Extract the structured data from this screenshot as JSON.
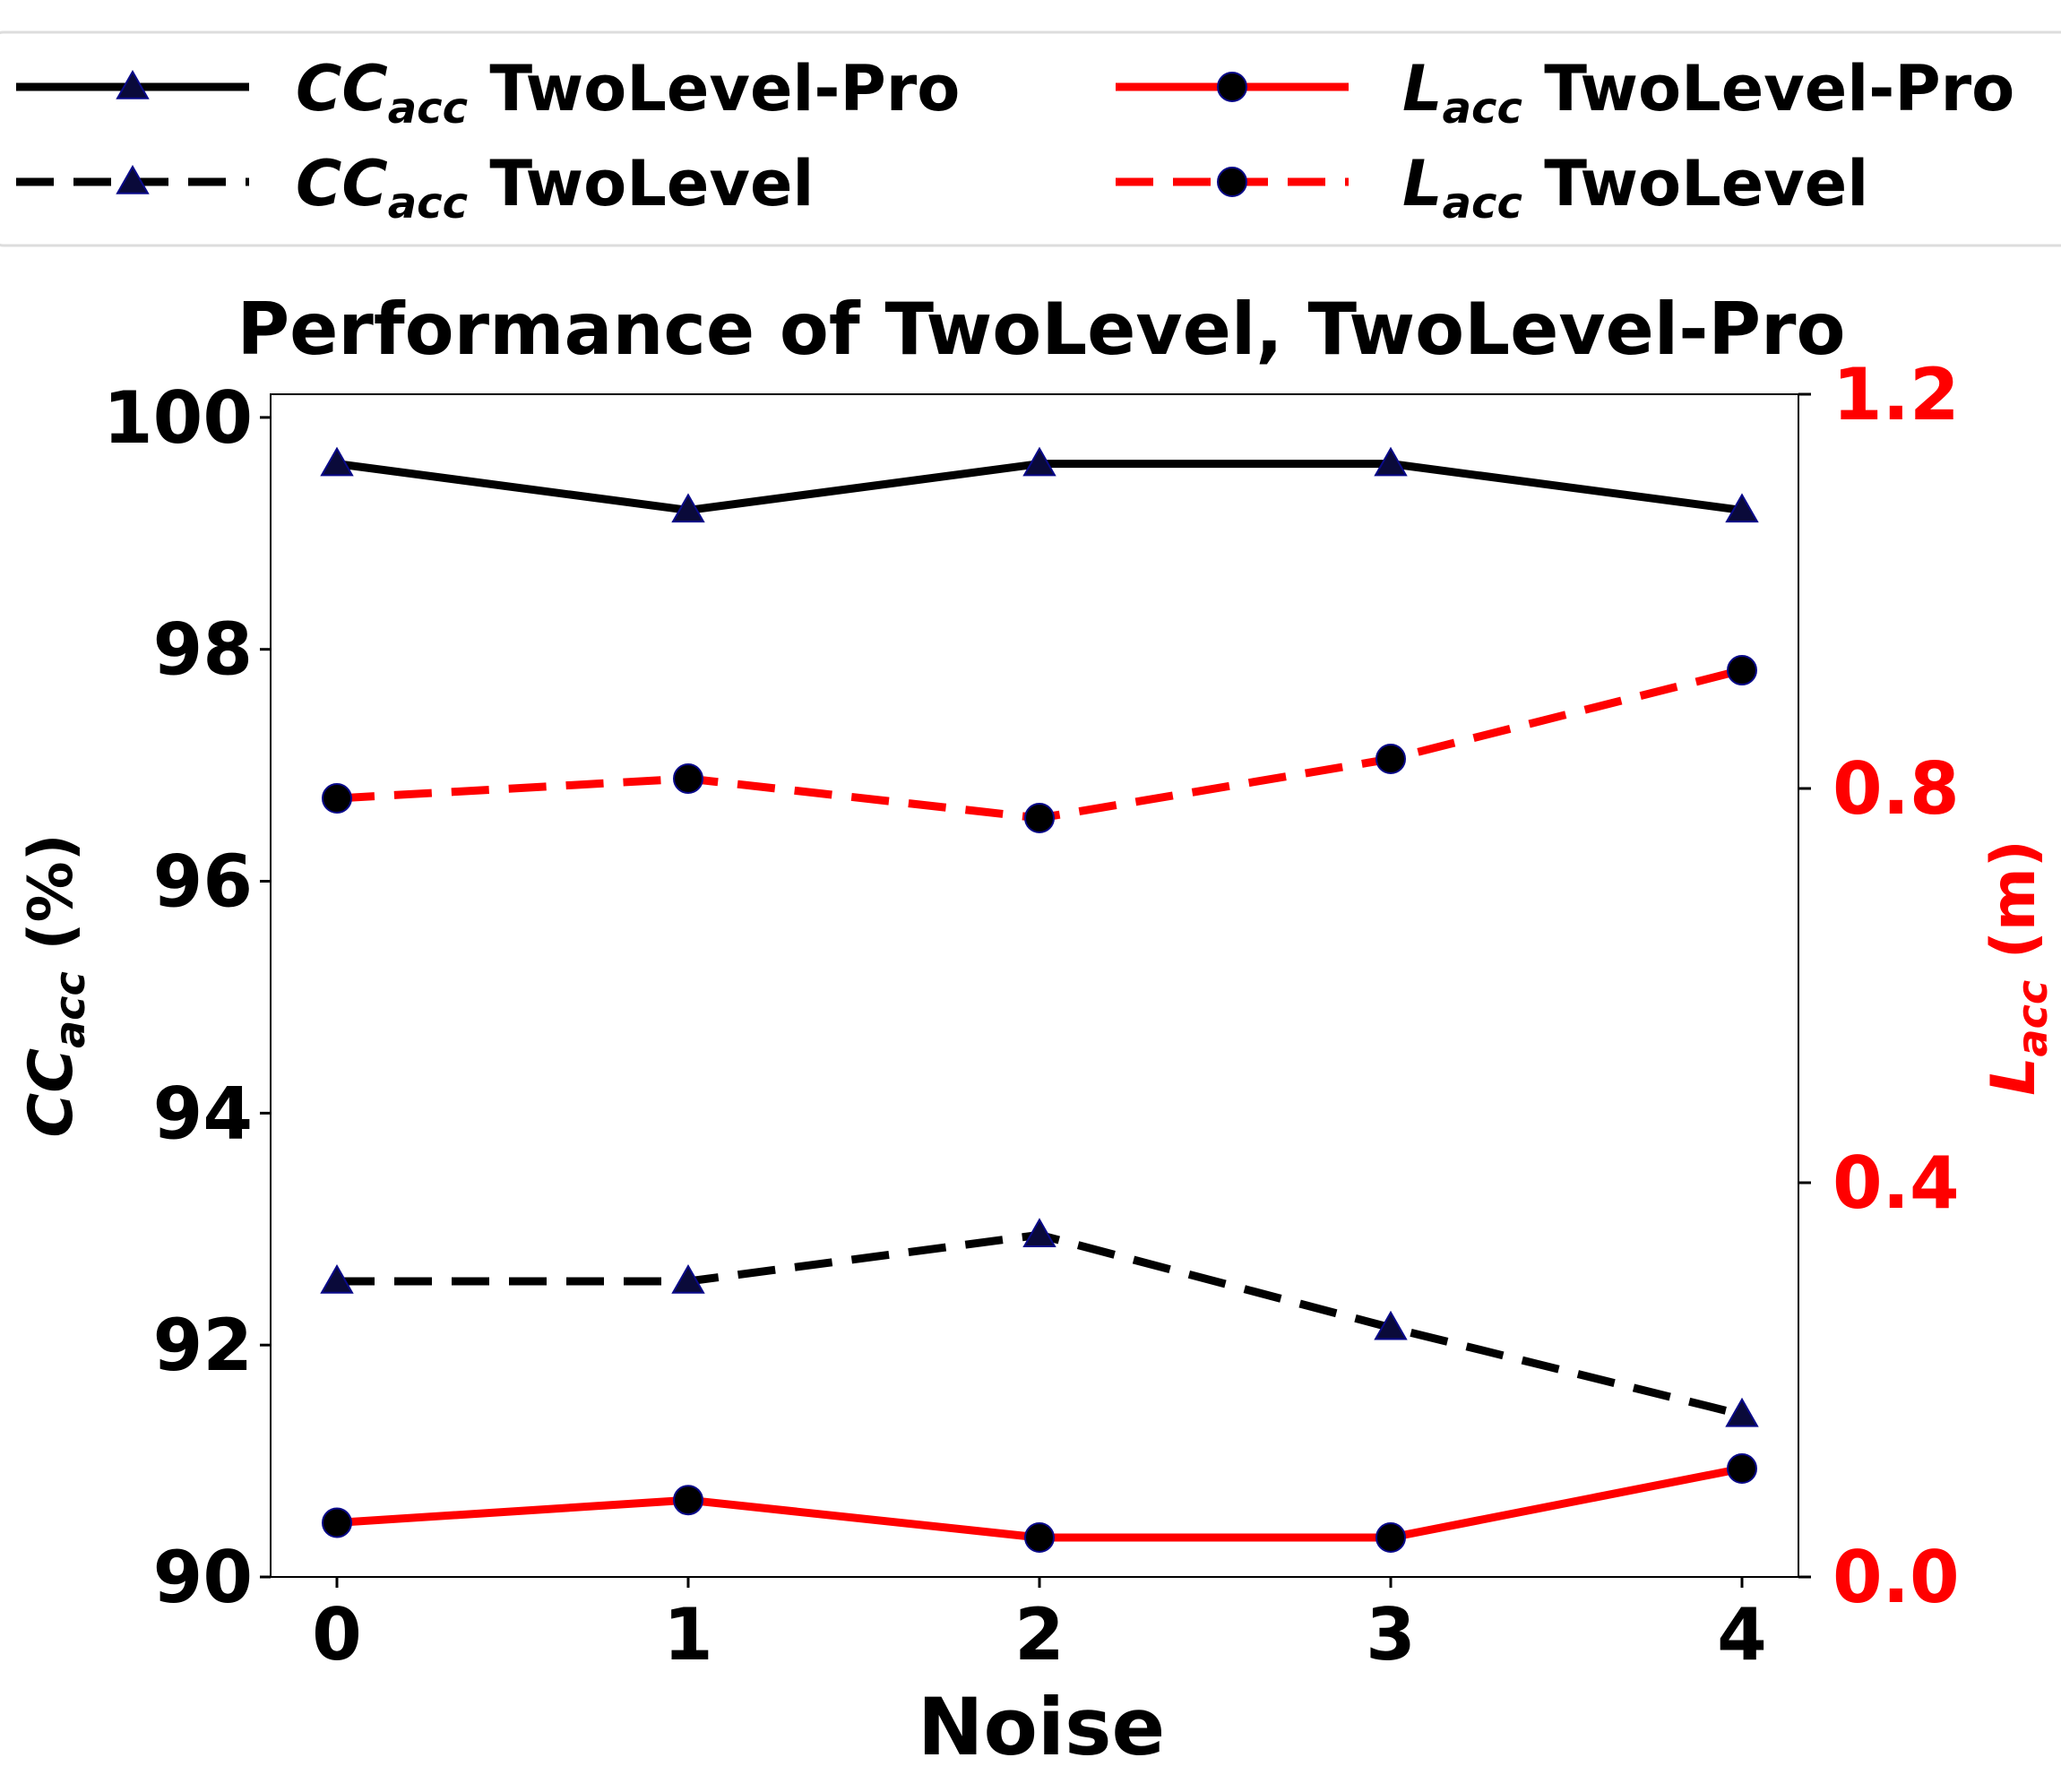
{
  "chart_data": {
    "type": "line",
    "title": "Performance of TwoLevel, TwoLevel-Pro",
    "xlabel": "Noise",
    "x": [
      0,
      1,
      2,
      3,
      4
    ],
    "y_left": {
      "label_main": "CC",
      "label_sub": "acc",
      "label_tail": " (%)",
      "ylim": [
        90,
        100.2
      ],
      "ticks": [
        90,
        92,
        94,
        96,
        98,
        100
      ],
      "tick_labels": [
        "90",
        "92",
        "94",
        "96",
        "98",
        "100"
      ],
      "color": "#000000"
    },
    "y_right": {
      "label_main": "L",
      "label_sub": "acc",
      "label_tail": " (m)",
      "ylim": [
        0.0,
        1.2
      ],
      "ticks": [
        0.0,
        0.4,
        0.8,
        1.2
      ],
      "tick_labels": [
        "0.0",
        "0.4",
        "0.8",
        "1.2"
      ],
      "color": "#ff0000"
    },
    "series": [
      {
        "legend_main": "CC",
        "legend_sub": "acc",
        "legend_tail": " TwoLevel-Pro",
        "axis": "left",
        "color": "#000000",
        "dash": "solid",
        "marker": "triangle",
        "values": [
          99.6,
          99.2,
          99.6,
          99.6,
          99.2
        ]
      },
      {
        "legend_main": "CC",
        "legend_sub": "acc",
        "legend_tail": " TwoLevel",
        "axis": "left",
        "color": "#000000",
        "dash": "dashed",
        "marker": "triangle",
        "values": [
          92.55,
          92.55,
          92.95,
          92.15,
          91.4
        ]
      },
      {
        "legend_main": "L",
        "legend_sub": "acc",
        "legend_tail": " TwoLevel-Pro",
        "axis": "right",
        "color": "#ff0000",
        "dash": "solid",
        "marker": "circle",
        "values": [
          0.055,
          0.078,
          0.04,
          0.04,
          0.11
        ]
      },
      {
        "legend_main": "L",
        "legend_sub": "acc",
        "legend_tail": " TwoLevel",
        "axis": "right",
        "color": "#ff0000",
        "dash": "dashed",
        "marker": "circle",
        "values": [
          0.79,
          0.81,
          0.77,
          0.83,
          0.92
        ]
      }
    ],
    "legend_position": "top",
    "grid": false
  }
}
